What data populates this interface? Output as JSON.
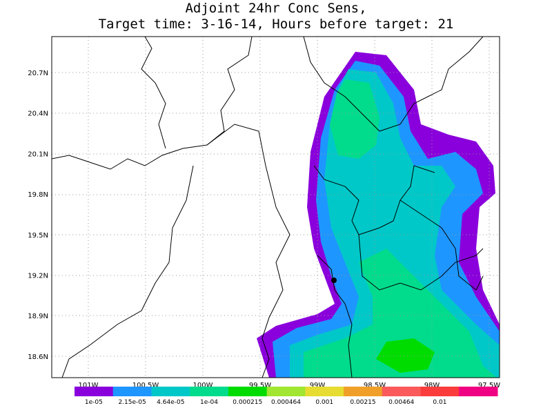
{
  "title": [
    "Adjoint 24hr Conc Sens,",
    "Target time: 3-16-14, Hours before target: 21"
  ],
  "map": {
    "lat_labels": [
      "20.7N",
      "20.4N",
      "20.1N",
      "19.8N",
      "19.5N",
      "19.2N",
      "18.9N",
      "18.6N"
    ],
    "lon_labels": [
      "101W",
      "100.5W",
      "100W",
      "99.5W",
      "99W",
      "98.5W",
      "98W",
      "97.5W"
    ]
  },
  "colorbar": {
    "colors": [
      "#8a00dc",
      "#1e96ff",
      "#00c8c8",
      "#00dc8c",
      "#00dc00",
      "#a0e632",
      "#e6dc32",
      "#f0a028",
      "#fa5a5a",
      "#fa3c3c",
      "#f00082"
    ],
    "labels": [
      "1e-05",
      "2.15e-05",
      "4.64e-05",
      "1e-04",
      "0.000215",
      "0.000464",
      "0.001",
      "0.00215",
      "0.00464",
      "0.01"
    ]
  }
}
